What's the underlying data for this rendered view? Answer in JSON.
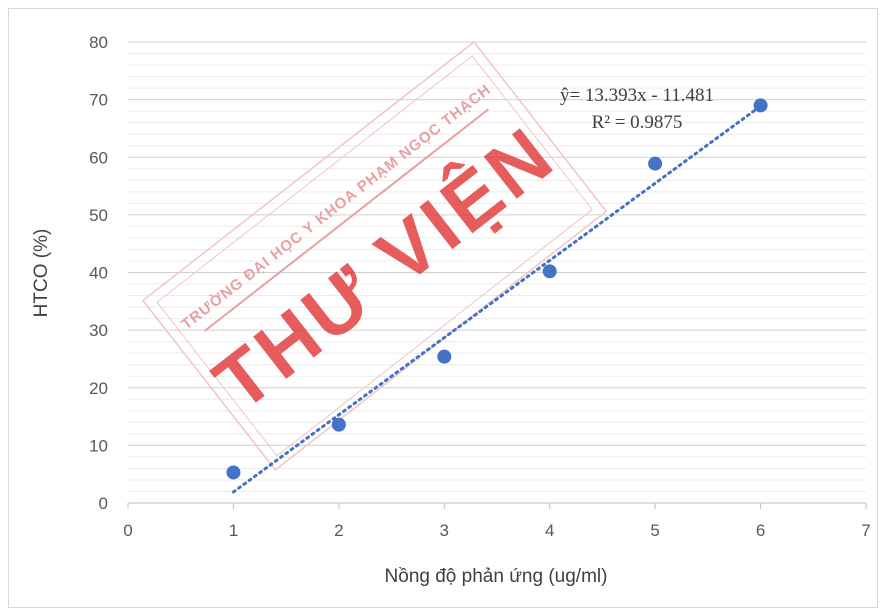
{
  "chart_data": {
    "type": "scatter",
    "xlabel": "Nồng độ phản ứng (ug/ml)",
    "ylabel": "HTCO (%)",
    "xlim": [
      0,
      7
    ],
    "ylim": [
      0,
      80
    ],
    "xticks": [
      0,
      1,
      2,
      3,
      4,
      5,
      6,
      7
    ],
    "yticks": [
      0,
      10,
      20,
      30,
      40,
      50,
      60,
      70,
      80
    ],
    "grid": "horizontal major and minor",
    "series": [
      {
        "x": [
          1,
          2,
          3,
          4,
          5,
          6
        ],
        "y": [
          5.3,
          13.6,
          25.4,
          40.2,
          58.9,
          69.0
        ],
        "color": "#4472c4"
      }
    ],
    "trendline": {
      "type": "linear",
      "slope": 13.393,
      "intercept": -11.481,
      "x_range": [
        1,
        6
      ],
      "style": "dotted",
      "color": "#4472c4",
      "equation_label": "ŷ= 13.393x - 11.481",
      "r2_label": "R² = 0.9875"
    }
  },
  "watermark": {
    "line1": "TRƯỜNG ĐẠI HỌC Y KHOA PHẠM NGỌC THẠCH",
    "line2": "THƯ VIỆN",
    "color": "#e03030"
  }
}
